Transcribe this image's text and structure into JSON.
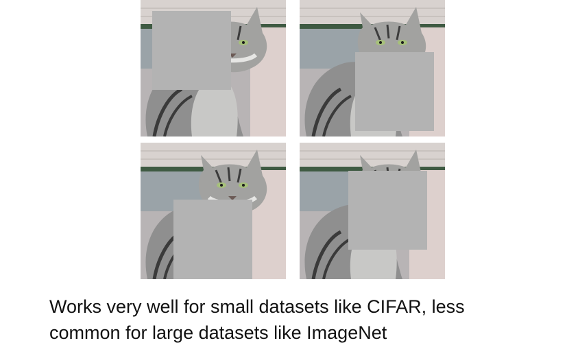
{
  "figure": {
    "images": [
      {
        "name": "cat-photo-top-left",
        "cutout": "top-left"
      },
      {
        "name": "cat-photo-top-right",
        "cutout": "bottom-right"
      },
      {
        "name": "cat-photo-bottom-left",
        "cutout": "bottom-center"
      },
      {
        "name": "cat-photo-bottom-right",
        "cutout": "center-right"
      }
    ],
    "cutout_color": "#b3b3b3"
  },
  "caption": {
    "line1": "Works very well for small datasets like CIFAR, less",
    "line2": "common for large datasets like ImageNet"
  }
}
